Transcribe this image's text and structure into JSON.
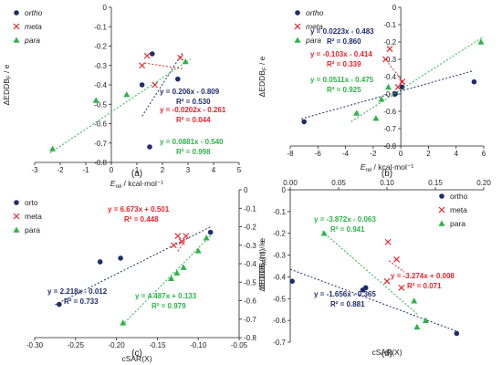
{
  "colors": {
    "ortho": "#1f2d6b",
    "meta": "#e8232a",
    "para": "#2db34a",
    "axis": "#222222"
  },
  "chart_data": [
    {
      "type": "scatter",
      "panel_label": "(a)",
      "xlim": [
        -3,
        5
      ],
      "ylim": [
        -0.8,
        0
      ],
      "xticks": [
        -3,
        -2,
        -1,
        0,
        1,
        2,
        3,
        4,
        5
      ],
      "yticks": [
        0,
        -0.1,
        -0.2,
        -0.3,
        -0.4,
        -0.5,
        -0.6,
        -0.7,
        -0.8
      ],
      "tick_labels_x": [
        "-3",
        "-2",
        "-1",
        "0",
        "1",
        "2",
        "3",
        "4",
        "5"
      ],
      "tick_labels_y": [
        "0",
        "-0.1",
        "-0.2",
        "-0.3",
        "-0.4",
        "-0.5",
        "-0.6",
        "-0.7",
        "-0.8"
      ],
      "y_axis_at_x": 0,
      "x_axis_at_y": -0.8,
      "xlabel": "E",
      "xlabel_sub": "rel",
      "xlabel_rest": " / kcal·mol⁻¹",
      "ylabel": "ΔEDDB",
      "ylabel_sub": "F",
      "ylabel_rest": " / e",
      "legend": [
        "ortho",
        "meta",
        "para"
      ],
      "legend_italic": true,
      "legend_placement": "top-left",
      "series": [
        {
          "name": "ortho",
          "marker": "circle",
          "x": [
            1.2,
            1.6,
            2.6,
            1.5
          ],
          "y": [
            -0.4,
            -0.24,
            -0.37,
            -0.72
          ],
          "fit": [
            0.206,
            -0.809
          ],
          "fit_range": [
            1.2,
            2.8
          ],
          "eq": "y = 0.206x - 0.809",
          "r2": "R² = 0.530"
        },
        {
          "name": "meta",
          "marker": "x",
          "x": [
            1.4,
            1.2,
            1.7,
            2.7
          ],
          "y": [
            -0.25,
            -0.3,
            -0.4,
            -0.26
          ],
          "fit": [
            -0.0202,
            -0.261
          ],
          "fit_range": [
            1.3,
            2.8
          ],
          "eq": "y = -0.0202x - 0.261",
          "r2": "R² = 0.044"
        },
        {
          "name": "para",
          "marker": "triangle",
          "x": [
            -2.3,
            -0.6,
            0.6,
            2.9
          ],
          "y": [
            -0.73,
            -0.48,
            -0.45,
            -0.28
          ],
          "fit": [
            0.0881,
            -0.54
          ],
          "fit_range": [
            -2.4,
            3.1
          ],
          "eq": "y = 0.0881x - 0.540",
          "r2": "R² = 0.998"
        }
      ]
    },
    {
      "type": "scatter",
      "panel_label": "(b)",
      "xlim": [
        -8,
        6
      ],
      "ylim": [
        -0.8,
        0
      ],
      "xticks": [
        -8,
        -6,
        -4,
        -2,
        0,
        2,
        4,
        6
      ],
      "yticks": [
        0,
        -0.1,
        -0.2,
        -0.3,
        -0.4,
        -0.5,
        -0.6,
        -0.7,
        -0.8
      ],
      "tick_labels_x": [
        "-8",
        "-6",
        "-4",
        "-2",
        "0",
        "2",
        "4",
        "6"
      ],
      "tick_labels_y": [
        "0",
        "-0.1",
        "-0.2",
        "-0.3",
        "-0.4",
        "-0.5",
        "-0.6",
        "-0.7",
        "-0.8"
      ],
      "y_axis_at_x": 0,
      "x_axis_at_y": -0.8,
      "xlabel": "E",
      "xlabel_sub": "rel",
      "xlabel_rest": " / kcal·mol⁻¹",
      "ylabel": "ΔEDDB",
      "ylabel_sub": "F",
      "ylabel_rest": " / e",
      "legend": [
        "ortho",
        "meta",
        "para"
      ],
      "legend_italic": true,
      "legend_placement": "top-left",
      "series": [
        {
          "name": "ortho",
          "marker": "circle",
          "x": [
            -7,
            -0.4,
            0.1,
            5.3
          ],
          "y": [
            -0.66,
            -0.5,
            -0.46,
            -0.43
          ],
          "fit": [
            0.0223,
            -0.483
          ],
          "fit_range": [
            -7.2,
            5.2
          ],
          "eq": "y = 0.0223x - 0.483",
          "r2": "R² = 0.860"
        },
        {
          "name": "meta",
          "marker": "x",
          "x": [
            -0.8,
            -1.1,
            -0.2,
            0.1
          ],
          "y": [
            -0.24,
            -0.3,
            -0.46,
            -0.43
          ],
          "fit": [
            -0.103,
            -0.414
          ],
          "fit_range": [
            -0.9,
            0.3
          ],
          "eq": "y = -0.103x - 0.414",
          "r2": "R² = 0.339"
        },
        {
          "name": "para",
          "marker": "triangle",
          "x": [
            -3.2,
            -1.8,
            5.8,
            -0.9,
            -1.4
          ],
          "y": [
            -0.61,
            -0.64,
            -0.2,
            -0.46,
            -0.53
          ],
          "fit": [
            0.0511,
            -0.475
          ],
          "fit_range": [
            -3.6,
            6.0
          ],
          "eq": "y = 0.0511x - 0.475",
          "r2": "R² = 0.925"
        }
      ]
    },
    {
      "type": "scatter",
      "panel_label": "(c)",
      "xlim": [
        -0.3,
        -0.05
      ],
      "ylim": [
        -0.8,
        0
      ],
      "xticks": [
        -0.3,
        -0.25,
        -0.2,
        -0.15,
        -0.1,
        -0.05
      ],
      "yticks": [
        0,
        -0.1,
        -0.2,
        -0.3,
        -0.4,
        -0.5,
        -0.6,
        -0.7,
        -0.8
      ],
      "tick_labels_x": [
        "-0.30",
        "-0.25",
        "-0.20",
        "-0.15",
        "-0.10",
        "-0.05"
      ],
      "tick_labels_y": [
        "0",
        "-0.1",
        "-0.2",
        "-0.3",
        "-0.4",
        "-0.5",
        "-0.6",
        "-0.7",
        "-0.8"
      ],
      "y_axis_at_x": -0.05,
      "x_axis_at_y": -0.8,
      "xlabel": "cSAR(X)",
      "xlabel_sub": "",
      "xlabel_rest": "",
      "ylabel": "ΔEDDB",
      "ylabel_sub": "F",
      "ylabel_rest": "(π) / e",
      "legend": [
        "orto",
        "meta",
        "para"
      ],
      "legend_italic": false,
      "legend_placement": "top-left",
      "series": [
        {
          "name": "orto",
          "marker": "circle",
          "x": [
            -0.27,
            -0.22,
            -0.195,
            -0.085
          ],
          "y": [
            -0.62,
            -0.39,
            -0.37,
            -0.23
          ],
          "fit": [
            2.218,
            -0.012
          ],
          "fit_range": [
            -0.275,
            -0.085
          ],
          "eq": "y = 2.218x - 0.012",
          "r2": "R² = 0.733"
        },
        {
          "name": "meta",
          "marker": "x",
          "x": [
            -0.125,
            -0.12,
            -0.115,
            -0.13
          ],
          "y": [
            -0.25,
            -0.28,
            -0.25,
            -0.3
          ],
          "fit": [
            6.673,
            0.501
          ],
          "fit_range": [
            -0.125,
            -0.115
          ],
          "eq": "y = 6.673x + 0.501",
          "r2": "R² = 0.448"
        },
        {
          "name": "para",
          "marker": "triangle",
          "x": [
            -0.192,
            -0.133,
            -0.126,
            -0.118,
            -0.1,
            -0.09
          ],
          "y": [
            -0.72,
            -0.48,
            -0.45,
            -0.42,
            -0.33,
            -0.26
          ],
          "fit": [
            4.487,
            0.133
          ],
          "fit_range": [
            -0.19,
            -0.085
          ],
          "eq": "y = 4.487x + 0.133",
          "r2": "R² = 0.979"
        }
      ]
    },
    {
      "type": "scatter",
      "panel_label": "(d)",
      "xlim": [
        0,
        0.2
      ],
      "ylim": [
        -0.7,
        0
      ],
      "xticks": [
        0,
        0.05,
        0.1,
        0.15,
        0.2
      ],
      "yticks": [
        0,
        -0.1,
        -0.2,
        -0.3,
        -0.4,
        -0.5,
        -0.6,
        -0.7
      ],
      "tick_labels_x": [
        "0.00",
        "0.05",
        "0.10",
        "0.15",
        "0.20"
      ],
      "tick_labels_y": [
        "0",
        "-0.1",
        "-0.2",
        "-0.3",
        "-0.4",
        "-0.5",
        "-0.6",
        "-0.7"
      ],
      "y_axis_at_x": 0,
      "x_axis_at_y": 0,
      "xlabel": "cSAR(X)",
      "xlabel_sub": "",
      "xlabel_rest": "",
      "ylabel": "ΔEDDB",
      "ylabel_sub": "F",
      "ylabel_rest": "(π) / e",
      "legend": [
        "ortho",
        "meta",
        "para"
      ],
      "legend_italic": false,
      "legend_placement": "top-right",
      "series": [
        {
          "name": "ortho",
          "marker": "circle",
          "x": [
            0.002,
            0.078,
            0.075,
            0.172
          ],
          "y": [
            -0.42,
            -0.45,
            -0.46,
            -0.66
          ],
          "fit": [
            -1.656,
            -0.365
          ],
          "fit_range": [
            0.0,
            0.172
          ],
          "eq": "y = -1.656x - 0.365",
          "r2": "R² = 0.881"
        },
        {
          "name": "meta",
          "marker": "x",
          "x": [
            0.101,
            0.11,
            0.1,
            0.115
          ],
          "y": [
            -0.24,
            -0.32,
            -0.42,
            -0.45
          ],
          "fit": [
            -3.274,
            0.008
          ],
          "fit_range": [
            0.102,
            0.118
          ],
          "eq": "y = -3.274x + 0.008",
          "r2": "R² = 0.071"
        },
        {
          "name": "para",
          "marker": "triangle",
          "x": [
            0.035,
            0.128,
            0.131,
            0.14
          ],
          "y": [
            -0.2,
            -0.51,
            -0.63,
            -0.6
          ],
          "fit": [
            -3.872,
            -0.063
          ],
          "fit_range": [
            0.033,
            0.132
          ],
          "eq": "y = -3.872x - 0.063",
          "r2": "R² = 0.941"
        }
      ]
    }
  ]
}
